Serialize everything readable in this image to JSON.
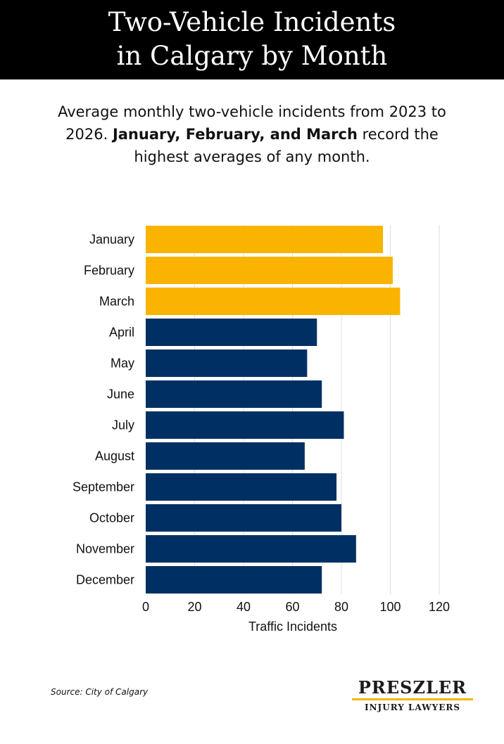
{
  "header": {
    "title_line1": "Two-Vehicle Incidents",
    "title_line2": "in Calgary by Month"
  },
  "subtitle": {
    "part1": "Average monthly two-vehicle incidents from 2023 to 2026.",
    "bold": "January, February, and March",
    "part2": "record the highest averages of any month."
  },
  "chart_data": {
    "type": "bar",
    "orientation": "horizontal",
    "categories": [
      "January",
      "February",
      "March",
      "April",
      "May",
      "June",
      "July",
      "August",
      "September",
      "October",
      "November",
      "December"
    ],
    "values": [
      97,
      101,
      104,
      70,
      66,
      72,
      81,
      65,
      78,
      80,
      86,
      72
    ],
    "highlighted": [
      "January",
      "February",
      "March"
    ],
    "xlabel": "Traffic Incidents",
    "ylabel": "",
    "xlim": [
      0,
      120
    ],
    "xticks": [
      0,
      20,
      40,
      60,
      80,
      100,
      120
    ],
    "grid": "vertical",
    "colors": {
      "highlight": "#fab400",
      "default": "#003063",
      "grid": "#dddddd"
    }
  },
  "footer": {
    "source": "Source: City of Calgary",
    "logo_main": "PRESZLER",
    "logo_sub": "INJURY LAWYERS",
    "logo_accent": "#f7b500"
  }
}
